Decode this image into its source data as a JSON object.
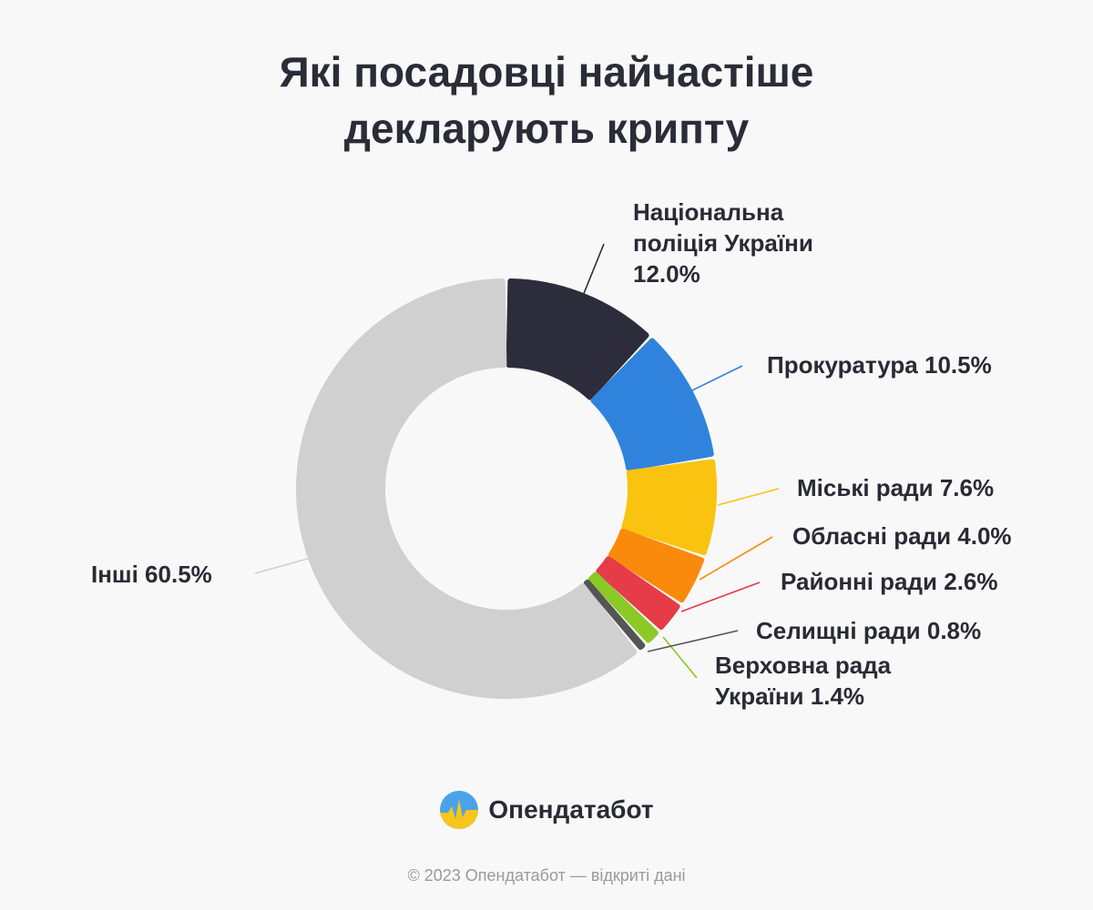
{
  "title_line1": "Які посадовці найчастіше",
  "title_line2": "декларують крипту",
  "chart_data": {
    "type": "pie",
    "donut": true,
    "title": "Які посадовці найчастіше декларують крипту",
    "unit": "%",
    "slices": [
      {
        "label": [
          "Національна",
          "поліція України",
          "12.0%"
        ],
        "name": "Національна поліція України",
        "value": 12.0,
        "color": "#2d2c3b"
      },
      {
        "label": [
          "Прокуратура 10.5%"
        ],
        "name": "Прокуратура",
        "value": 10.5,
        "color": "#2f83dc"
      },
      {
        "label": [
          "Міські ради 7.6%"
        ],
        "name": "Міські ради",
        "value": 7.6,
        "color": "#f9c30f"
      },
      {
        "label": [
          "Обласні ради 4.0%"
        ],
        "name": "Обласні ради",
        "value": 4.0,
        "color": "#fa8a0b"
      },
      {
        "label": [
          "Районні ради 2.6%"
        ],
        "name": "Районні ради",
        "value": 2.6,
        "color": "#e53c48"
      },
      {
        "label": [
          "Верховна рада",
          "України 1.4%"
        ],
        "name": "Верховна рада України",
        "value": 1.4,
        "color": "#8ac926"
      },
      {
        "label": [
          "Селищні ради 0.8%"
        ],
        "name": "Селищні ради",
        "value": 0.8,
        "color": "#555555"
      },
      {
        "label": [
          "Інші 60.5%"
        ],
        "name": "Інші",
        "value": 60.5,
        "color": "#cfd0cf"
      }
    ]
  },
  "brand": {
    "name": "Опендатабот",
    "icon": "opendatabot-logo-icon"
  },
  "footer": "© 2023 Опендатабот — відкриті дані"
}
